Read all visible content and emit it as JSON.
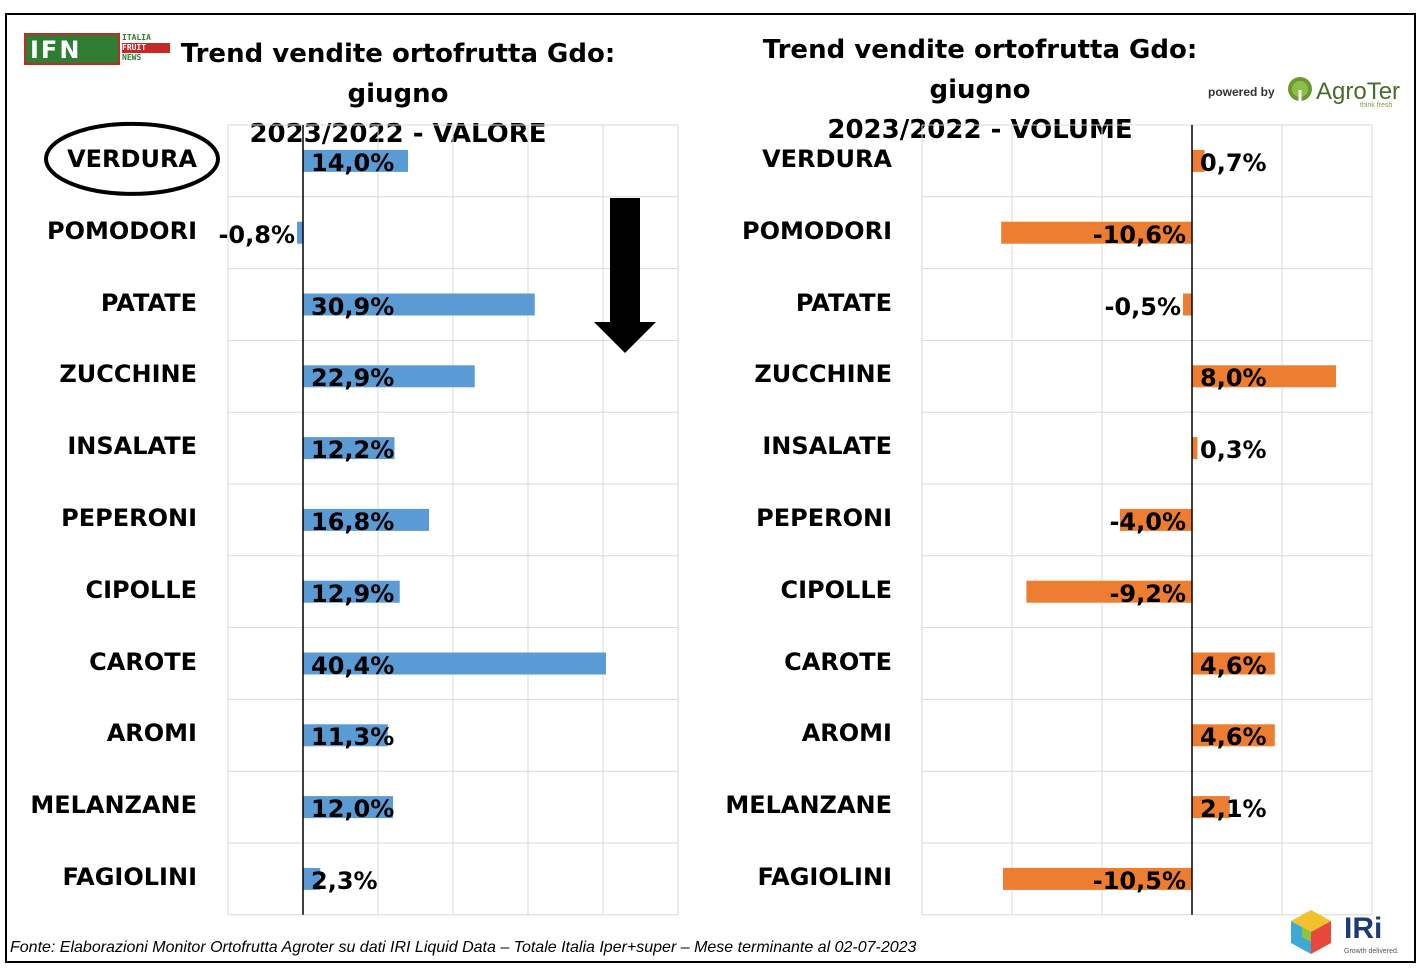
{
  "logo": {
    "ifn_letters": "IFN",
    "ifn_side_lines": [
      "ITALIA",
      "FRUIT",
      "NEWS"
    ],
    "powered_by": "powered by",
    "agroter_name": "AgroTer",
    "agroter_tagline": "think fresh",
    "iri_name": "IRi",
    "iri_tagline": "Growth delivered."
  },
  "footer": {
    "source": "Fonte: Elaborazioni Monitor Ortofrutta Agroter su dati IRI Liquid Data – Totale Italia Iper+super – Mese terminante al 02-07-2023"
  },
  "colors": {
    "valore": "#5b9bd5",
    "volume": "#ed7d31",
    "grid": "#d9d9d9"
  },
  "chart_data": [
    {
      "type": "bar",
      "orientation": "horizontal",
      "title_line1": "Trend vendite ortofrutta Gdo: giugno",
      "title_line2": "2023/2022 - VALORE",
      "categories": [
        "VERDURA",
        "POMODORI",
        "PATATE",
        "ZUCCHINE",
        "INSALATE",
        "PEPERONI",
        "CIPOLLE",
        "CAROTE",
        "AROMI",
        "MELANZANE",
        "FAGIOLINI"
      ],
      "values": [
        14.0,
        -0.8,
        30.9,
        22.9,
        12.2,
        16.8,
        12.9,
        40.4,
        11.3,
        12.0,
        2.3
      ],
      "labels": [
        "14,0%",
        "-0,8%",
        "30,9%",
        "22,9%",
        "12,2%",
        "16,8%",
        "12,9%",
        "40,4%",
        "11,3%",
        "12,0%",
        "2,3%"
      ],
      "xlim": [
        -10,
        50
      ],
      "grid": true,
      "highlight": "VERDURA",
      "annotation": "down-arrow"
    },
    {
      "type": "bar",
      "orientation": "horizontal",
      "title_line1": "Trend vendite ortofrutta Gdo: giugno",
      "title_line2": "2023/2022 - VOLUME",
      "categories": [
        "VERDURA",
        "POMODORI",
        "PATATE",
        "ZUCCHINE",
        "INSALATE",
        "PEPERONI",
        "CIPOLLE",
        "CAROTE",
        "AROMI",
        "MELANZANE",
        "FAGIOLINI"
      ],
      "values": [
        0.7,
        -10.6,
        -0.5,
        8.0,
        0.3,
        -4.0,
        -9.2,
        4.6,
        4.6,
        2.1,
        -10.5
      ],
      "labels": [
        "0,7%",
        "-10,6%",
        "-0,5%",
        "8,0%",
        "0,3%",
        "-4,0%",
        "-9,2%",
        "4,6%",
        "4,6%",
        "2,1%",
        "-10,5%"
      ],
      "xlim": [
        -15,
        10
      ],
      "grid": true
    }
  ]
}
